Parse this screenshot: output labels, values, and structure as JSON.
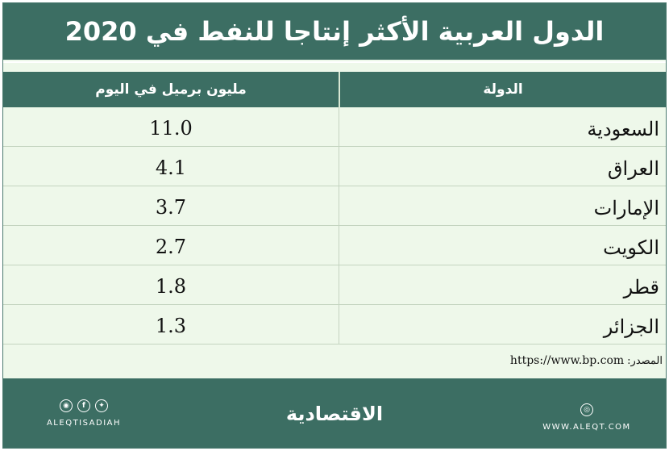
{
  "title": "الدول العربية الأكثر إنتاجا للنفط في 2020",
  "chart_data": {
    "type": "table",
    "title": "الدول العربية الأكثر إنتاجا للنفط في 2020",
    "columns": [
      "الدولة",
      "مليون برميل في اليوم"
    ],
    "categories": [
      "السعودية",
      "العراق",
      "الإمارات",
      "الكويت",
      "قطر",
      "الجزائر"
    ],
    "values": [
      "11.0",
      "4.1",
      "3.7",
      "2.7",
      "1.8",
      "1.3"
    ]
  },
  "source": {
    "label": "المصدر:",
    "url": "https://www.bp.com"
  },
  "footer": {
    "social_icons": [
      "instagram-icon",
      "facebook-icon",
      "twitter-icon"
    ],
    "handle": "ALEQTISADIAH",
    "logo": "الاقتصادية",
    "website": "WWW.ALEQT.COM"
  },
  "colors": {
    "dark_green": "#3c6e63",
    "row_bg": "#eef8ea",
    "text": "#111111"
  }
}
